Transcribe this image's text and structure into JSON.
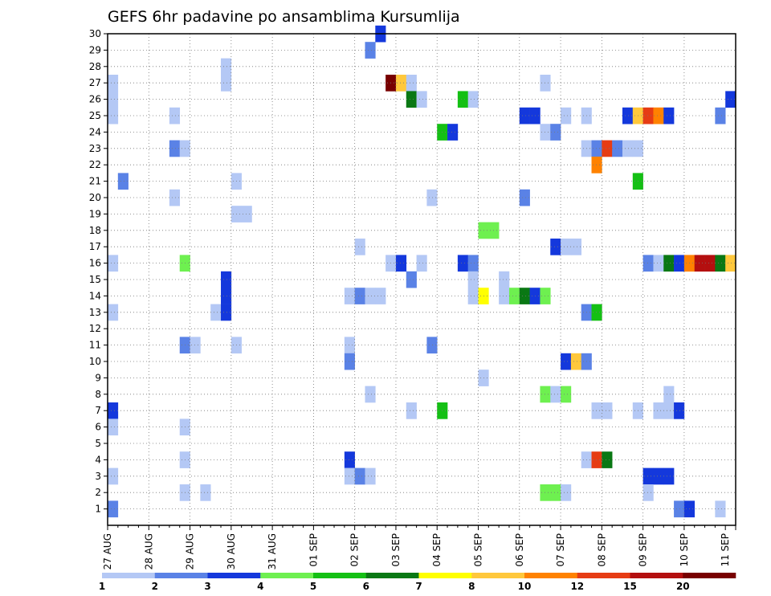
{
  "chart_data": {
    "type": "heatmap",
    "title": "GEFS 6hr padavine po ansamblima Kursumlija",
    "xlabel": "",
    "ylabel": "",
    "ylim": [
      0,
      30
    ],
    "y_ticks": [
      1,
      2,
      3,
      4,
      5,
      6,
      7,
      8,
      9,
      10,
      11,
      12,
      13,
      14,
      15,
      16,
      17,
      18,
      19,
      20,
      21,
      22,
      23,
      24,
      25,
      26,
      27,
      28,
      29,
      30
    ],
    "x_steps_total": 61,
    "x_steps_per_day": 4,
    "x_ticks": [
      "27 AUG",
      "28 AUG",
      "29 AUG",
      "30 AUG",
      "31 AUG",
      "01 SEP",
      "02 SEP",
      "03 SEP",
      "04 SEP",
      "05 SEP",
      "06 SEP",
      "07 SEP",
      "08 SEP",
      "09 SEP",
      "10 SEP",
      "11 SEP"
    ],
    "grid": true,
    "colorbar": {
      "levels": [
        "1",
        "2",
        "3",
        "4",
        "5",
        "6",
        "7",
        "8",
        "10",
        "12",
        "15",
        "20"
      ],
      "colors": [
        "#b4c8f5",
        "#5a82e6",
        "#1438dc",
        "#6ef050",
        "#14c014",
        "#0a7814",
        "#ffff00",
        "#ffc83c",
        "#ff8200",
        "#e63c14",
        "#b40f0f",
        "#780000"
      ]
    },
    "cells": [
      {
        "m": 30,
        "t": [
          [
            26,
            2
          ]
        ]
      },
      {
        "m": 29,
        "t": [
          [
            25,
            1
          ]
        ]
      },
      {
        "m": 28,
        "t": [
          [
            11,
            0
          ]
        ]
      },
      {
        "m": 27,
        "t": [
          [
            0,
            0
          ],
          [
            11,
            0
          ],
          [
            27,
            11
          ],
          [
            28,
            7
          ],
          [
            29,
            0
          ],
          [
            42,
            0
          ]
        ]
      },
      {
        "m": 26,
        "t": [
          [
            0,
            0
          ],
          [
            29,
            5
          ],
          [
            30,
            0
          ],
          [
            34,
            4
          ],
          [
            35,
            0
          ],
          [
            60,
            2
          ]
        ]
      },
      {
        "m": 25,
        "t": [
          [
            0,
            0
          ],
          [
            6,
            0
          ],
          [
            40,
            2
          ],
          [
            41,
            2
          ],
          [
            44,
            0
          ],
          [
            46,
            0
          ],
          [
            50,
            2
          ],
          [
            51,
            7
          ],
          [
            52,
            9
          ],
          [
            53,
            8
          ],
          [
            54,
            2
          ],
          [
            59,
            1
          ]
        ]
      },
      {
        "m": 24,
        "t": [
          [
            32,
            4
          ],
          [
            33,
            2
          ],
          [
            42,
            0
          ],
          [
            43,
            1
          ]
        ]
      },
      {
        "m": 23,
        "t": [
          [
            6,
            1
          ],
          [
            7,
            0
          ],
          [
            46,
            0
          ],
          [
            47,
            1
          ],
          [
            48,
            9
          ],
          [
            49,
            1
          ],
          [
            50,
            0
          ],
          [
            51,
            0
          ]
        ]
      },
      {
        "m": 22,
        "t": [
          [
            47,
            8
          ]
        ]
      },
      {
        "m": 21,
        "t": [
          [
            1,
            1
          ],
          [
            12,
            0
          ],
          [
            51,
            4
          ]
        ]
      },
      {
        "m": 20,
        "t": [
          [
            6,
            0
          ],
          [
            31,
            0
          ],
          [
            40,
            1
          ]
        ]
      },
      {
        "m": 19,
        "t": [
          [
            12,
            0
          ],
          [
            13,
            0
          ]
        ]
      },
      {
        "m": 18,
        "t": [
          [
            36,
            3
          ],
          [
            37,
            3
          ]
        ]
      },
      {
        "m": 17,
        "t": [
          [
            24,
            0
          ],
          [
            43,
            2
          ],
          [
            44,
            0
          ],
          [
            45,
            0
          ]
        ]
      },
      {
        "m": 16,
        "t": [
          [
            0,
            0
          ],
          [
            7,
            3
          ],
          [
            27,
            0
          ],
          [
            28,
            2
          ],
          [
            30,
            0
          ],
          [
            34,
            2
          ],
          [
            35,
            1
          ],
          [
            52,
            1
          ],
          [
            53,
            0
          ],
          [
            54,
            5
          ],
          [
            55,
            2
          ],
          [
            56,
            8
          ],
          [
            57,
            10
          ],
          [
            58,
            10
          ],
          [
            59,
            5
          ],
          [
            60,
            7
          ]
        ]
      },
      {
        "m": 15,
        "t": [
          [
            11,
            2
          ],
          [
            29,
            1
          ],
          [
            35,
            0
          ],
          [
            38,
            0
          ]
        ]
      },
      {
        "m": 14,
        "t": [
          [
            11,
            2
          ],
          [
            23,
            0
          ],
          [
            24,
            1
          ],
          [
            25,
            0
          ],
          [
            26,
            0
          ],
          [
            35,
            0
          ],
          [
            36,
            6
          ],
          [
            38,
            0
          ],
          [
            39,
            3
          ],
          [
            40,
            5
          ],
          [
            41,
            2
          ],
          [
            42,
            3
          ]
        ]
      },
      {
        "m": 13,
        "t": [
          [
            0,
            0
          ],
          [
            10,
            0
          ],
          [
            11,
            2
          ],
          [
            46,
            1
          ],
          [
            47,
            4
          ]
        ]
      },
      {
        "m": 12,
        "t": []
      },
      {
        "m": 11,
        "t": [
          [
            7,
            1
          ],
          [
            8,
            0
          ],
          [
            12,
            0
          ],
          [
            23,
            0
          ],
          [
            31,
            1
          ]
        ]
      },
      {
        "m": 10,
        "t": [
          [
            23,
            1
          ],
          [
            44,
            2
          ],
          [
            45,
            7
          ],
          [
            46,
            1
          ]
        ]
      },
      {
        "m": 9,
        "t": [
          [
            36,
            0
          ]
        ]
      },
      {
        "m": 8,
        "t": [
          [
            25,
            0
          ],
          [
            42,
            3
          ],
          [
            43,
            0
          ],
          [
            44,
            3
          ],
          [
            54,
            0
          ]
        ]
      },
      {
        "m": 7,
        "t": [
          [
            0,
            2
          ],
          [
            29,
            0
          ],
          [
            32,
            4
          ],
          [
            47,
            0
          ],
          [
            48,
            0
          ],
          [
            51,
            0
          ],
          [
            53,
            0
          ],
          [
            54,
            0
          ],
          [
            55,
            2
          ]
        ]
      },
      {
        "m": 6,
        "t": [
          [
            0,
            0
          ],
          [
            7,
            0
          ]
        ]
      },
      {
        "m": 5,
        "t": []
      },
      {
        "m": 4,
        "t": [
          [
            7,
            0
          ],
          [
            23,
            2
          ],
          [
            46,
            0
          ],
          [
            47,
            9
          ],
          [
            48,
            5
          ]
        ]
      },
      {
        "m": 3,
        "t": [
          [
            0,
            0
          ],
          [
            23,
            0
          ],
          [
            24,
            1
          ],
          [
            25,
            0
          ],
          [
            52,
            2
          ],
          [
            53,
            2
          ],
          [
            54,
            2
          ]
        ]
      },
      {
        "m": 2,
        "t": [
          [
            7,
            0
          ],
          [
            9,
            0
          ],
          [
            42,
            3
          ],
          [
            43,
            3
          ],
          [
            44,
            0
          ],
          [
            52,
            0
          ]
        ]
      },
      {
        "m": 1,
        "t": [
          [
            0,
            1
          ],
          [
            55,
            1
          ],
          [
            56,
            2
          ],
          [
            59,
            0
          ]
        ]
      }
    ]
  }
}
